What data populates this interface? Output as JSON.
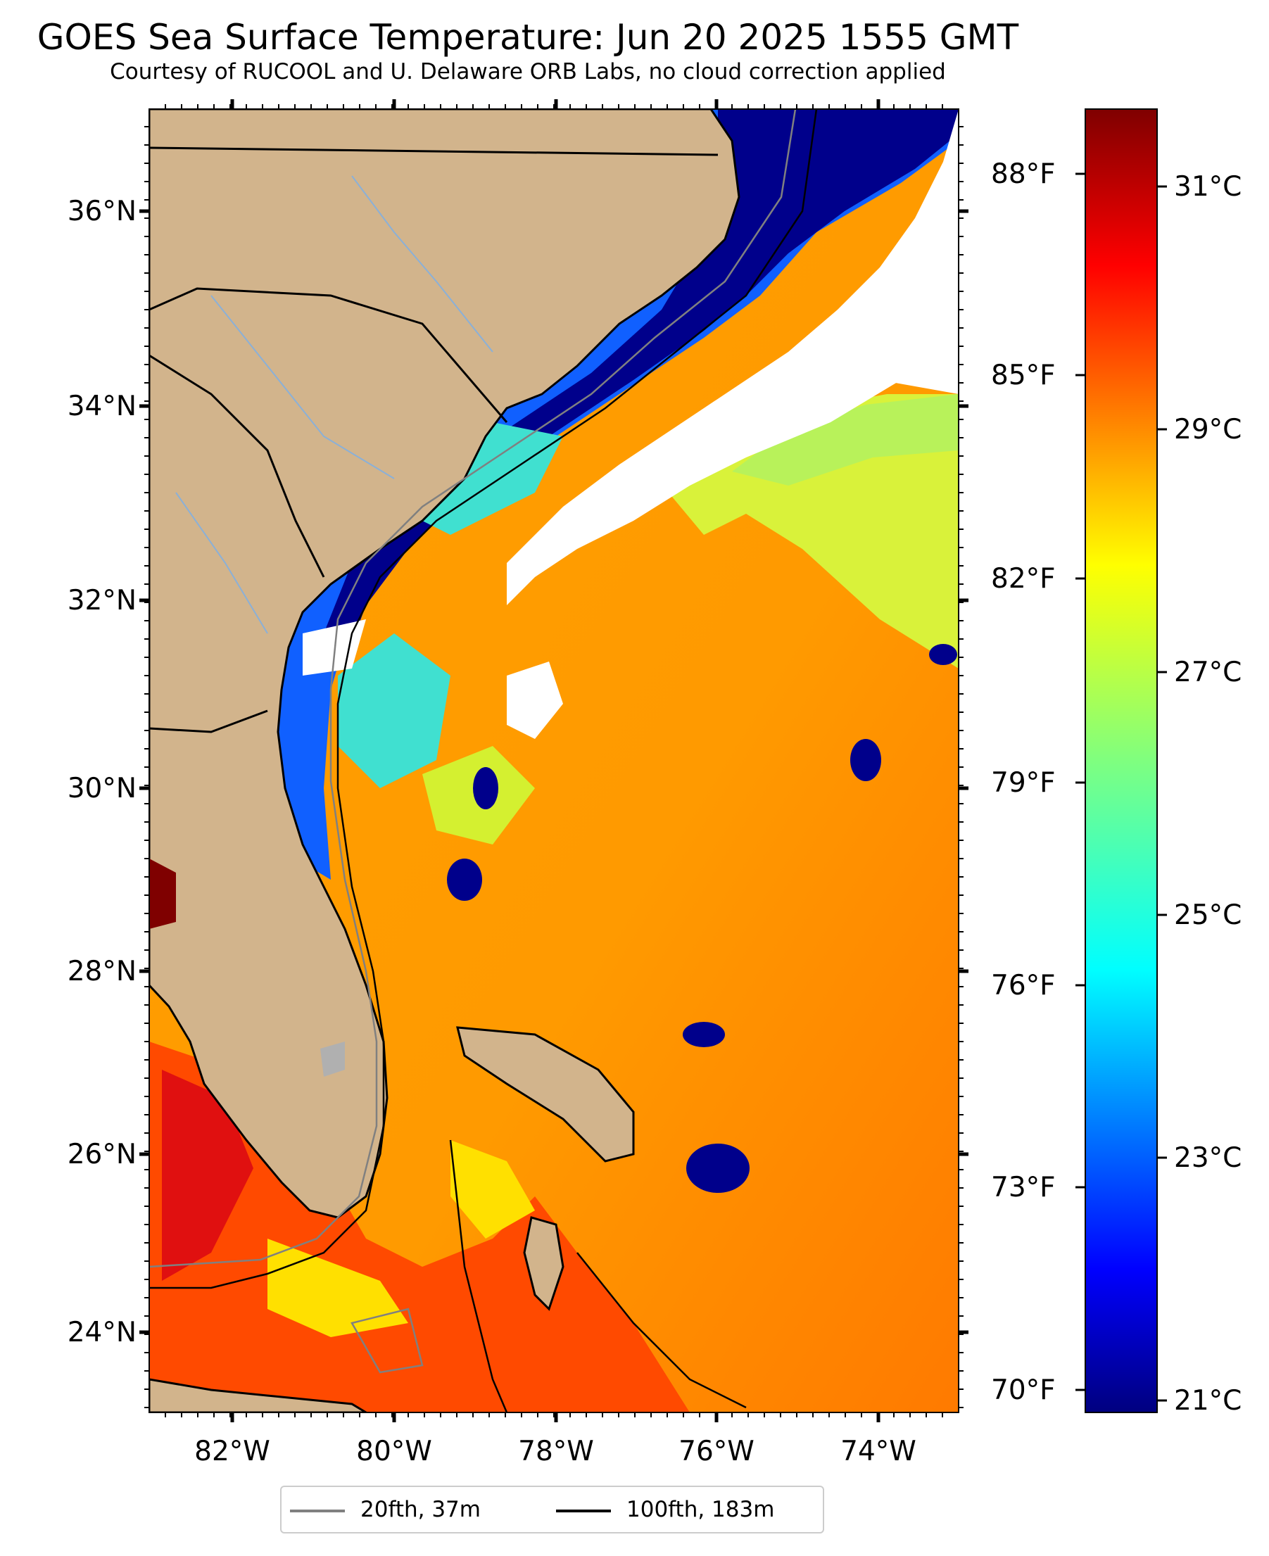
{
  "title": "GOES Sea Surface Temperature: Jun 20 2025 1555 GMT",
  "subtitle": "Courtesy of RUCOOL and U. Delaware ORB Labs, no cloud correction applied",
  "axes": {
    "lat_ticks": [
      "36°N",
      "34°N",
      "32°N",
      "30°N",
      "28°N",
      "26°N",
      "24°N"
    ],
    "lon_ticks": [
      "82°W",
      "80°W",
      "78°W",
      "76°W",
      "74°W"
    ]
  },
  "colorbar": {
    "fahrenheit_ticks": [
      "88°F",
      "85°F",
      "82°F",
      "79°F",
      "76°F",
      "73°F",
      "70°F"
    ],
    "celsius_ticks": [
      "31°C",
      "29°C",
      "27°C",
      "25°C",
      "23°C",
      "21°C"
    ],
    "colormap": "jet",
    "range_c": [
      20.8,
      31.8
    ]
  },
  "legend": {
    "items": [
      {
        "label": "20fth, 37m",
        "color": "#808080"
      },
      {
        "label": "100fth, 183m",
        "color": "#000000"
      }
    ]
  },
  "colors": {
    "land": "#d2b48c",
    "cloud": "#ffffff",
    "ocean_warm": "#ff9900",
    "ocean_cold": "#00008b"
  }
}
